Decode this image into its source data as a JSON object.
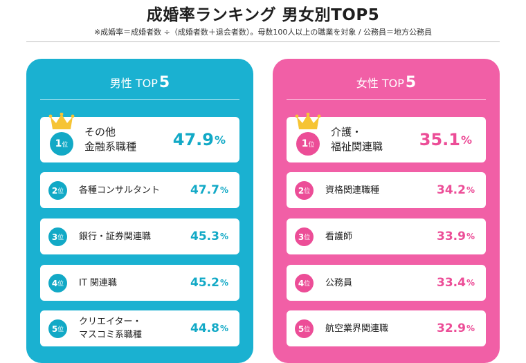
{
  "title": "成婚率ランキング 男女別TOP5",
  "note": "※成婚率＝成婚者数 ÷（成婚者数＋退会者数）。母数100人以上の職業を対象 / 公務員＝地方公務員",
  "colors": {
    "male_bg": "#1ab1d1",
    "male_accent": "#12a9c6",
    "female_bg": "#f15fa6",
    "female_accent": "#ec4d97",
    "crown": "#f6c434"
  },
  "rank_suffix": "位",
  "percent_sign": "%",
  "male": {
    "heading": "男性 TOP",
    "heading_num": "5",
    "items": [
      {
        "rank": "1",
        "lines": [
          "その他",
          "金融系職種"
        ],
        "rate": "47.9"
      },
      {
        "rank": "2",
        "lines": [
          "各種コンサルタント"
        ],
        "rate": "47.7"
      },
      {
        "rank": "3",
        "lines": [
          "銀行・証券関連職"
        ],
        "rate": "45.3"
      },
      {
        "rank": "4",
        "lines": [
          "IT 関連職"
        ],
        "rate": "45.2"
      },
      {
        "rank": "5",
        "lines": [
          "クリエイター・",
          "マスコミ系職種"
        ],
        "rate": "44.8"
      }
    ]
  },
  "female": {
    "heading": "女性 TOP",
    "heading_num": "5",
    "items": [
      {
        "rank": "1",
        "lines": [
          "介護・",
          "福祉関連職"
        ],
        "rate": "35.1"
      },
      {
        "rank": "2",
        "lines": [
          "資格関連職種"
        ],
        "rate": "34.2"
      },
      {
        "rank": "3",
        "lines": [
          "看護師"
        ],
        "rate": "33.9"
      },
      {
        "rank": "4",
        "lines": [
          "公務員"
        ],
        "rate": "33.4"
      },
      {
        "rank": "5",
        "lines": [
          "航空業界関連職"
        ],
        "rate": "32.9"
      }
    ]
  }
}
